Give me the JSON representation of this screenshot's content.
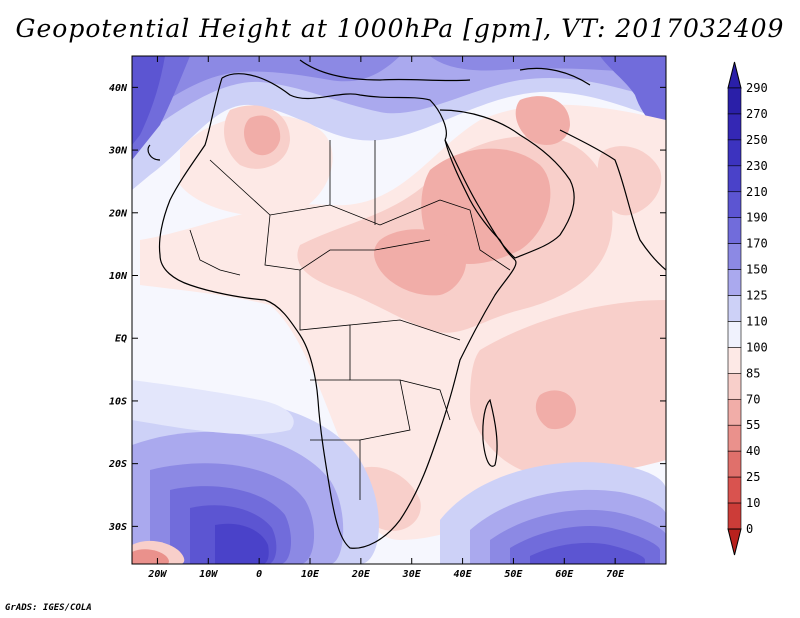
{
  "title": "Geopotential Height at 1000hPa [gpm], VT: 2017032409",
  "credit": "GrADS: IGES/COLA",
  "map": {
    "lon_range": [
      -25,
      80
    ],
    "lat_range": [
      -36,
      45
    ],
    "lat_ticks": [
      {
        "value": 40,
        "label": "40N"
      },
      {
        "value": 30,
        "label": "30N"
      },
      {
        "value": 20,
        "label": "20N"
      },
      {
        "value": 10,
        "label": "10N"
      },
      {
        "value": 0,
        "label": "EQ"
      },
      {
        "value": -10,
        "label": "10S"
      },
      {
        "value": -20,
        "label": "20S"
      },
      {
        "value": -30,
        "label": "30S"
      }
    ],
    "lon_ticks": [
      {
        "value": -20,
        "label": "20W"
      },
      {
        "value": -10,
        "label": "10W"
      },
      {
        "value": 0,
        "label": "0"
      },
      {
        "value": 10,
        "label": "10E"
      },
      {
        "value": 20,
        "label": "20E"
      },
      {
        "value": 30,
        "label": "30E"
      },
      {
        "value": 40,
        "label": "40E"
      },
      {
        "value": 50,
        "label": "50E"
      },
      {
        "value": 60,
        "label": "60E"
      },
      {
        "value": 70,
        "label": "70E"
      }
    ]
  },
  "colorbar": {
    "levels": [
      {
        "label": "290",
        "color": "#2a1fa8"
      },
      {
        "label": "270",
        "color": "#3427b4"
      },
      {
        "label": "250",
        "color": "#3c33bf"
      },
      {
        "label": "230",
        "color": "#4a42c9"
      },
      {
        "label": "210",
        "color": "#5c55d2"
      },
      {
        "label": "190",
        "color": "#716cdb"
      },
      {
        "label": "170",
        "color": "#8c89e4"
      },
      {
        "label": "150",
        "color": "#aaa9ee"
      },
      {
        "label": "125",
        "color": "#cdd1f7"
      },
      {
        "label": "110",
        "color": "#f0f2fd"
      },
      {
        "label": "100",
        "color": "#fde9e6"
      },
      {
        "label": "85",
        "color": "#f8cfca"
      },
      {
        "label": "70",
        "color": "#f1ada8"
      },
      {
        "label": "55",
        "color": "#ea918c"
      },
      {
        "label": "40",
        "color": "#e0706b"
      },
      {
        "label": "25",
        "color": "#d9534f"
      },
      {
        "label": "10",
        "color": "#cc3c38"
      },
      {
        "label": "0",
        "color": "#b8211d"
      }
    ],
    "top_color": "#2a1fa8",
    "bottom_color": "#b8211d"
  }
}
